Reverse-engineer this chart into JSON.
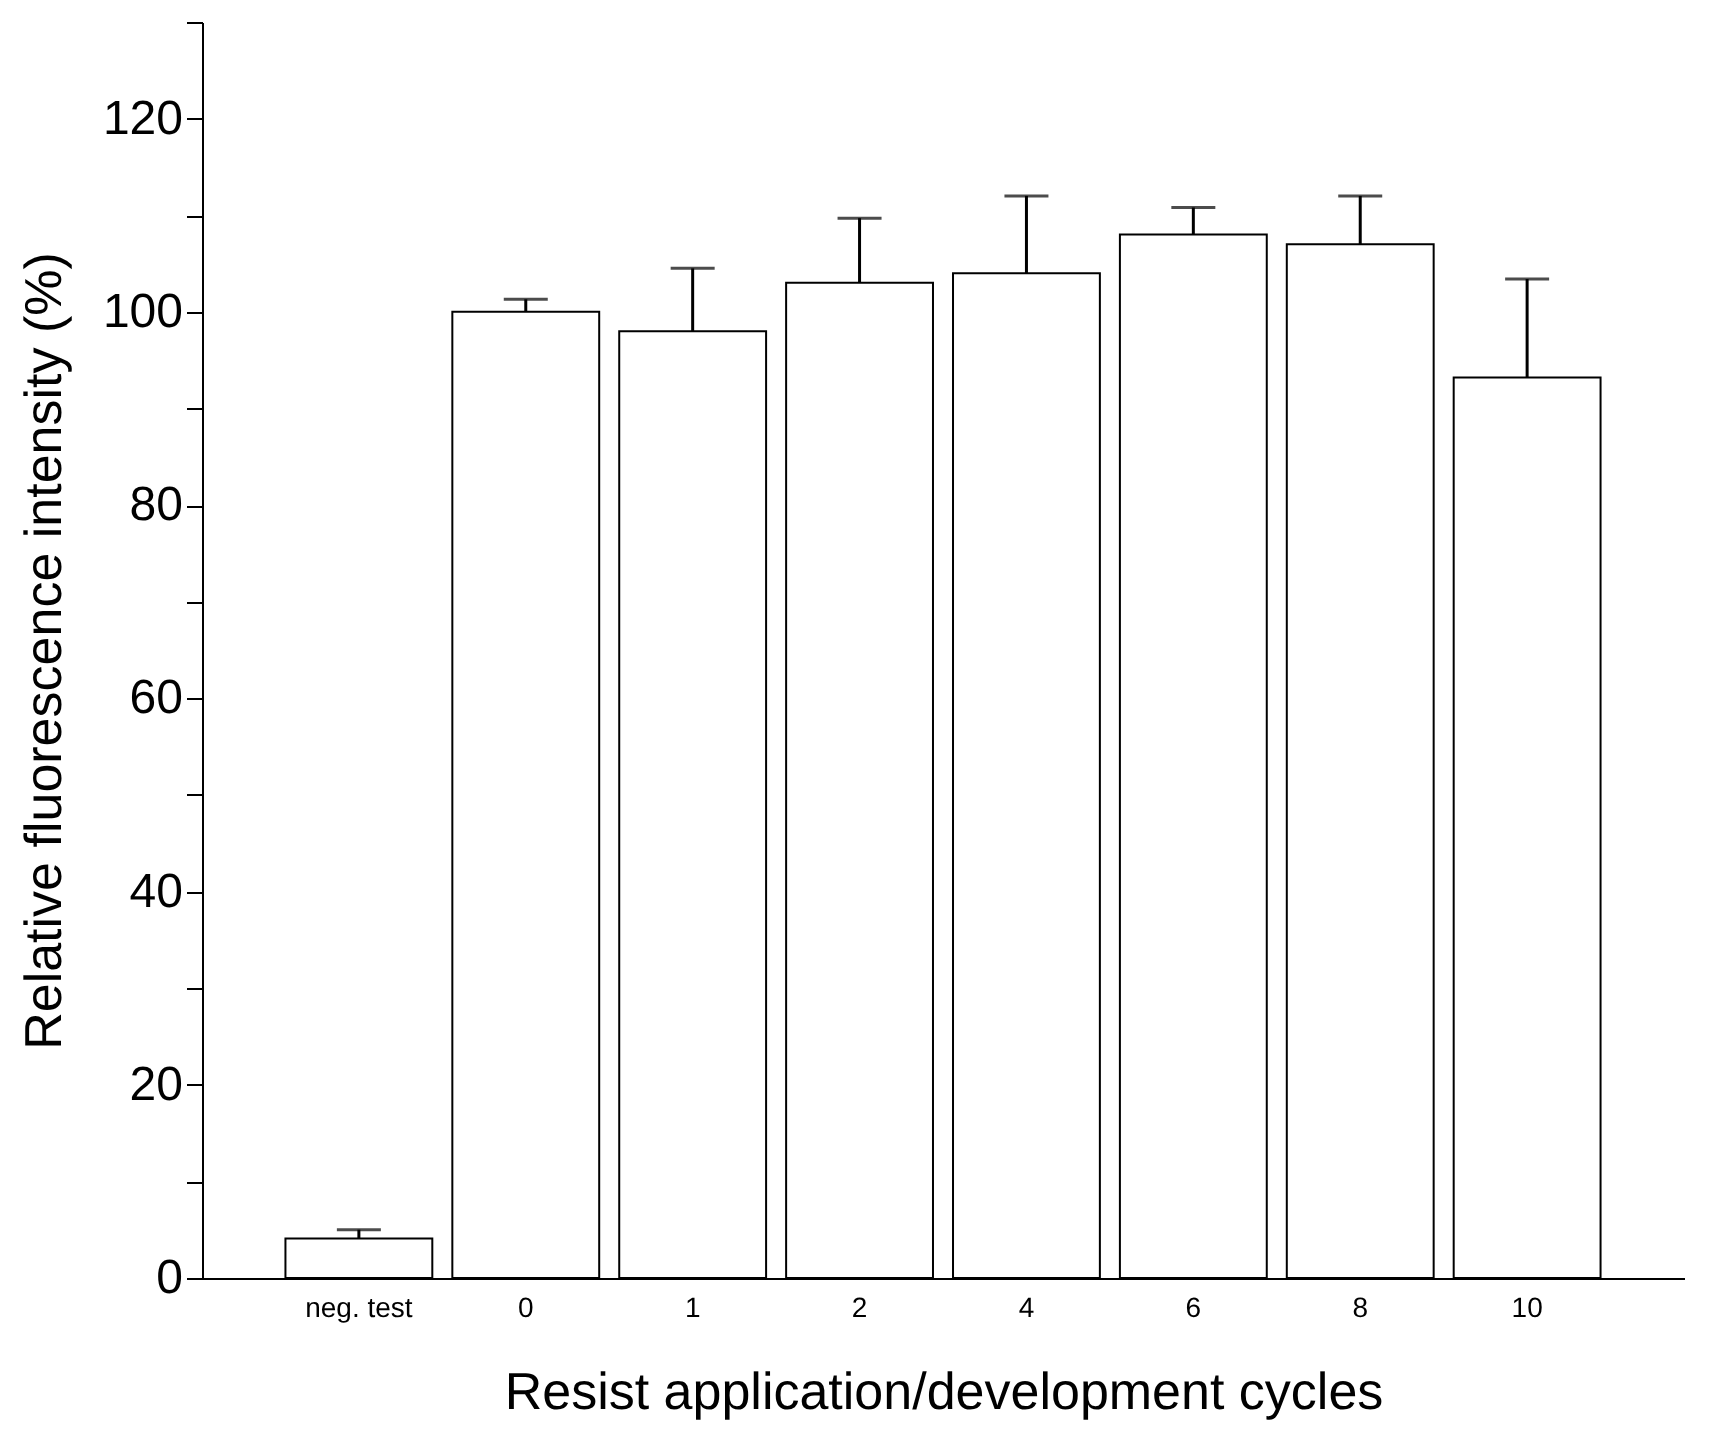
{
  "chart_data": {
    "type": "bar",
    "xlabel": "Resist application/development cycles",
    "ylabel": "Relative fluorescence intensity (%)",
    "categories": [
      "neg. test",
      "0",
      "1",
      "2",
      "4",
      "6",
      "8",
      "10"
    ],
    "values": [
      4.1,
      100,
      98,
      103,
      104,
      108,
      107,
      93.2
    ],
    "errors": [
      [
        4.1,
        5
      ],
      [
        100,
        101.3
      ],
      [
        98,
        104.5
      ],
      [
        103,
        109.7
      ],
      [
        104,
        112
      ],
      [
        108,
        110.8
      ],
      [
        107,
        112
      ],
      [
        93.2,
        103.4
      ]
    ],
    "color": "#ffffff",
    "ylim": [
      0,
      130
    ],
    "yticks": [
      0,
      {
        "value": 10,
        "label": null
      },
      20,
      {
        "value": 30,
        "label": null
      },
      40,
      {
        "value": 50,
        "label": null
      },
      60,
      {
        "value": 70,
        "label": null
      },
      80,
      {
        "value": 90,
        "label": null
      },
      100,
      {
        "value": 110,
        "label": null
      },
      120,
      {
        "value": 130,
        "label": null
      }
    ],
    "grid": false
  }
}
